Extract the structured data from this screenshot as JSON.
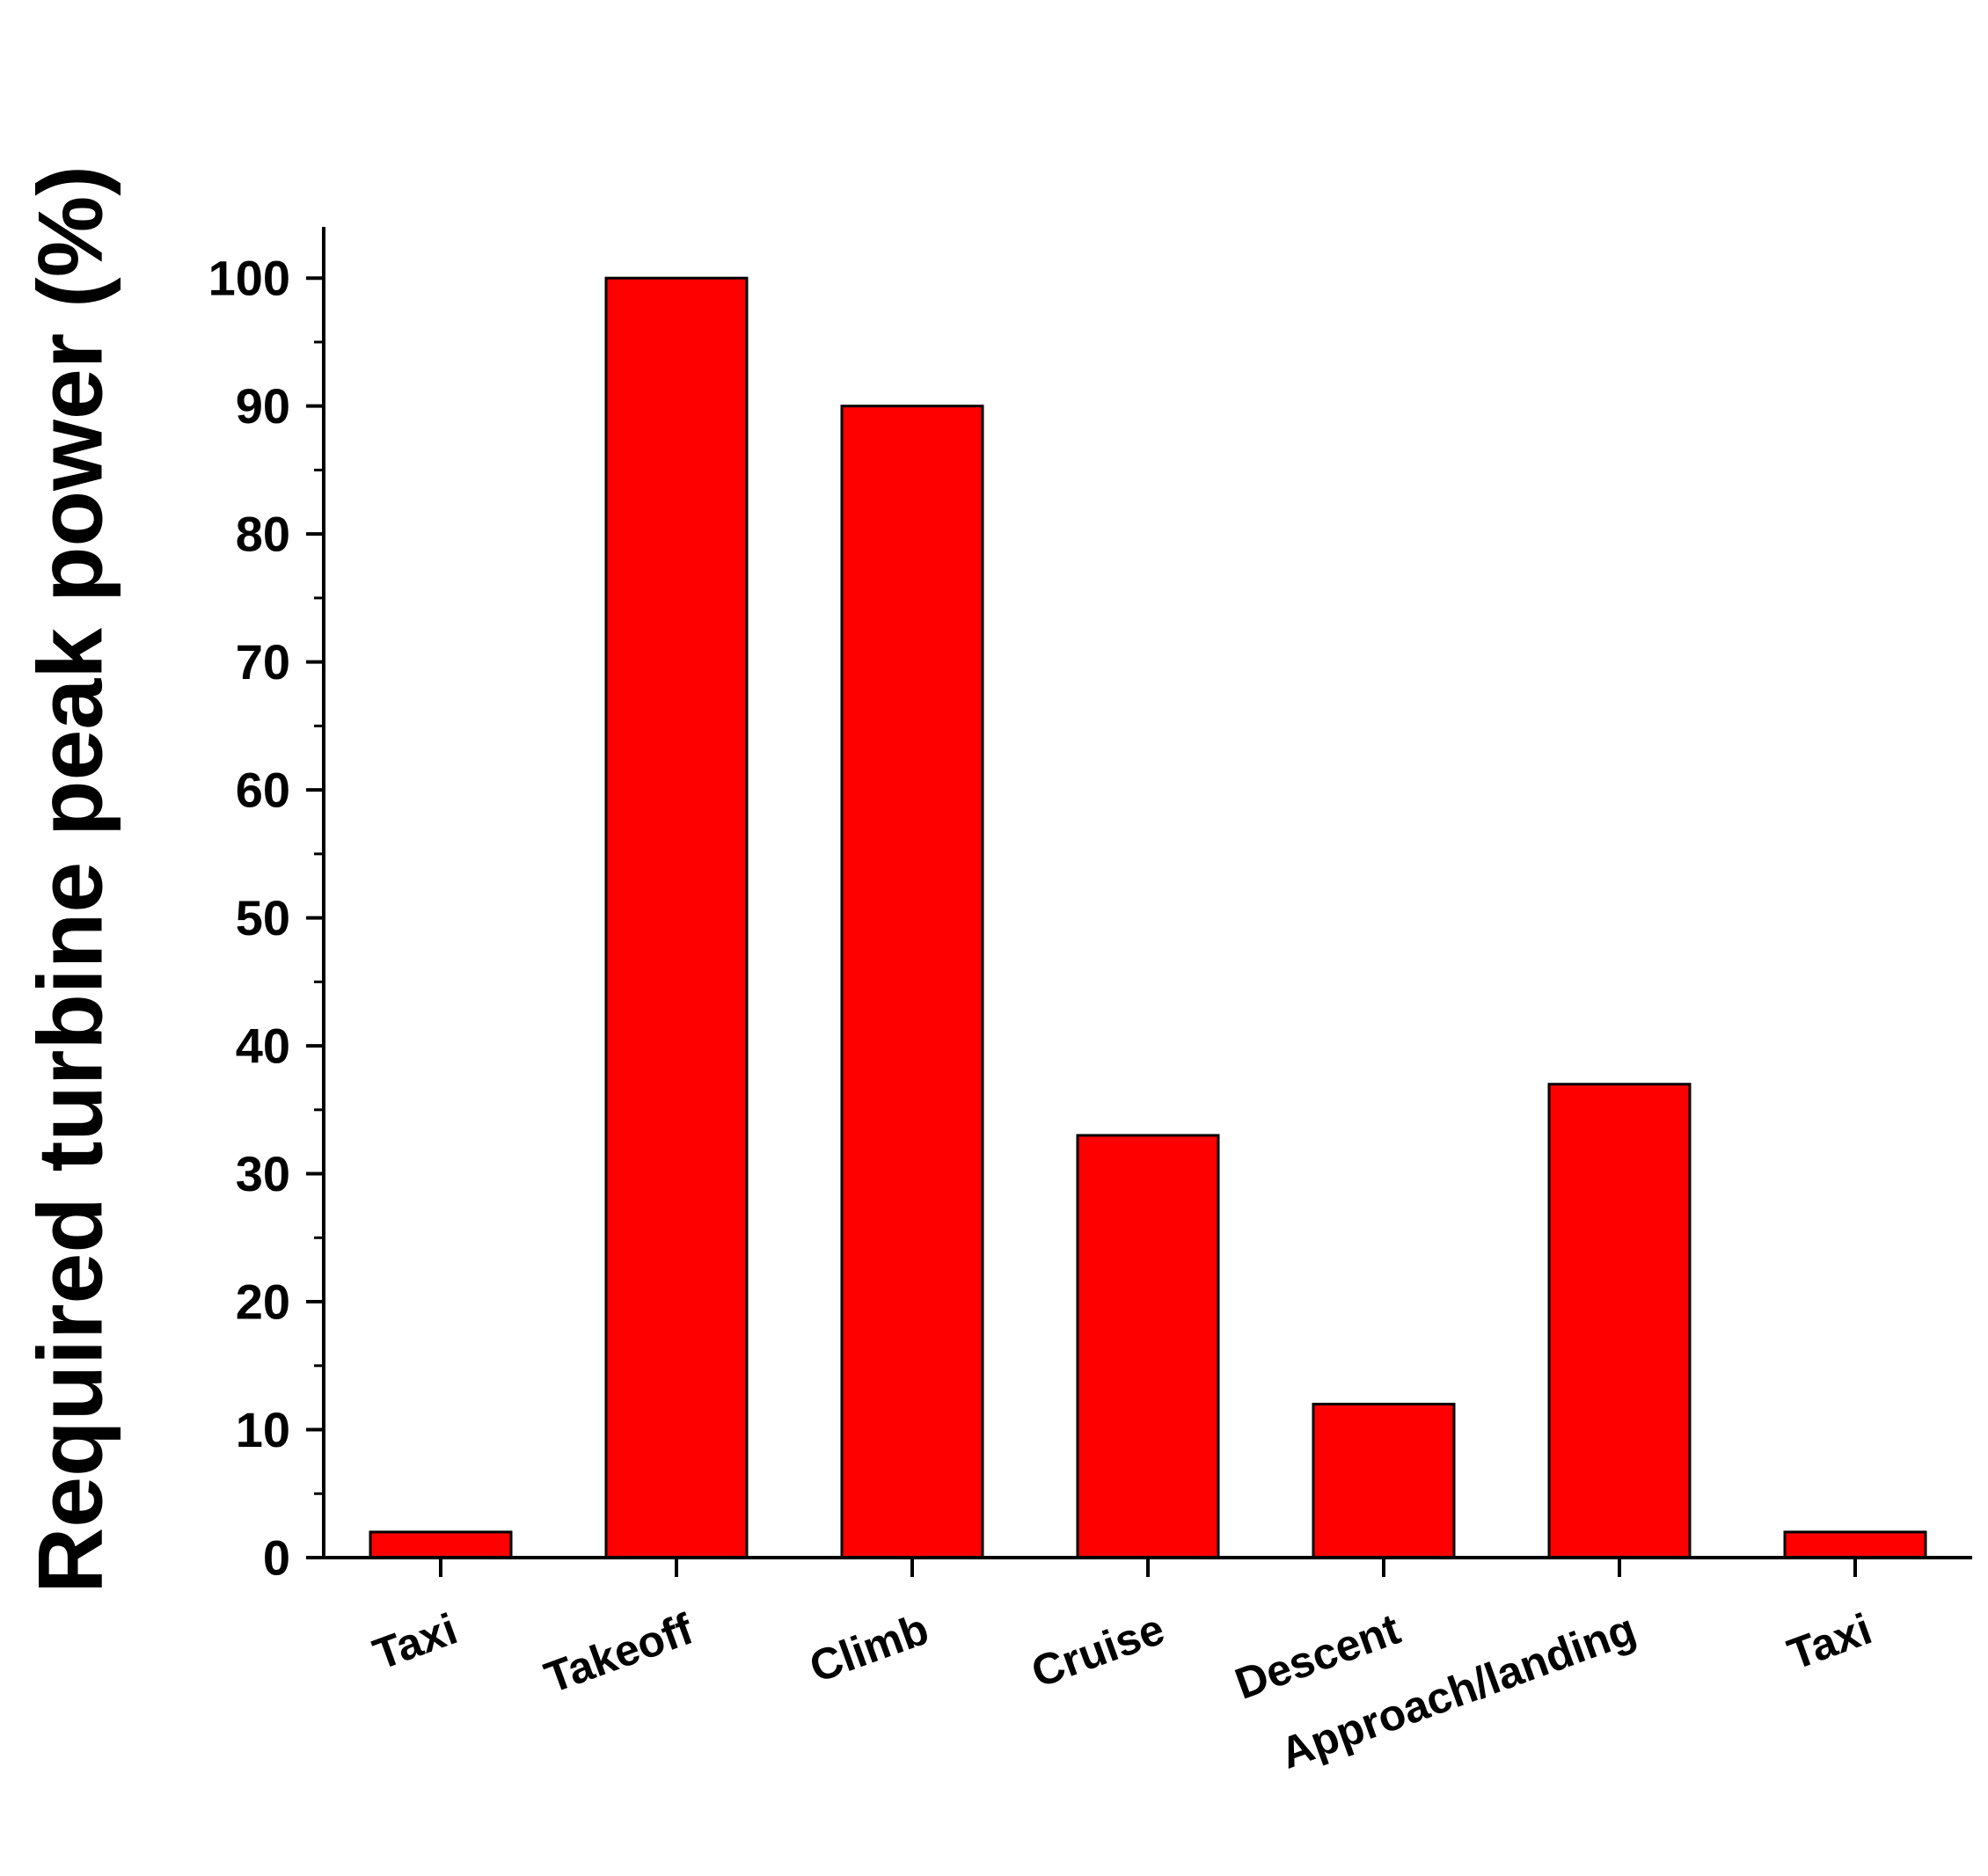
{
  "chart_data": {
    "type": "bar",
    "categories": [
      "Taxi",
      "Takeoff",
      "Climb",
      "Cruise",
      "Descent",
      "Approach/landing",
      "Taxi"
    ],
    "values": [
      2,
      100,
      90,
      33,
      12,
      37,
      2
    ],
    "title": "",
    "xlabel": "",
    "ylabel": "Required turbine peak power (%)",
    "ylim": [
      0,
      104
    ],
    "yticks": [
      0,
      10,
      20,
      30,
      40,
      50,
      60,
      70,
      80,
      90,
      100
    ],
    "ytick_labels": [
      "0",
      "10",
      "20",
      "30",
      "40",
      "50",
      "60",
      "70",
      "80",
      "90",
      "100"
    ],
    "grid": false,
    "legend": "none",
    "colors": {
      "bar_fill": "#ff0000",
      "bar_stroke": "#000000",
      "axis": "#000000"
    }
  }
}
